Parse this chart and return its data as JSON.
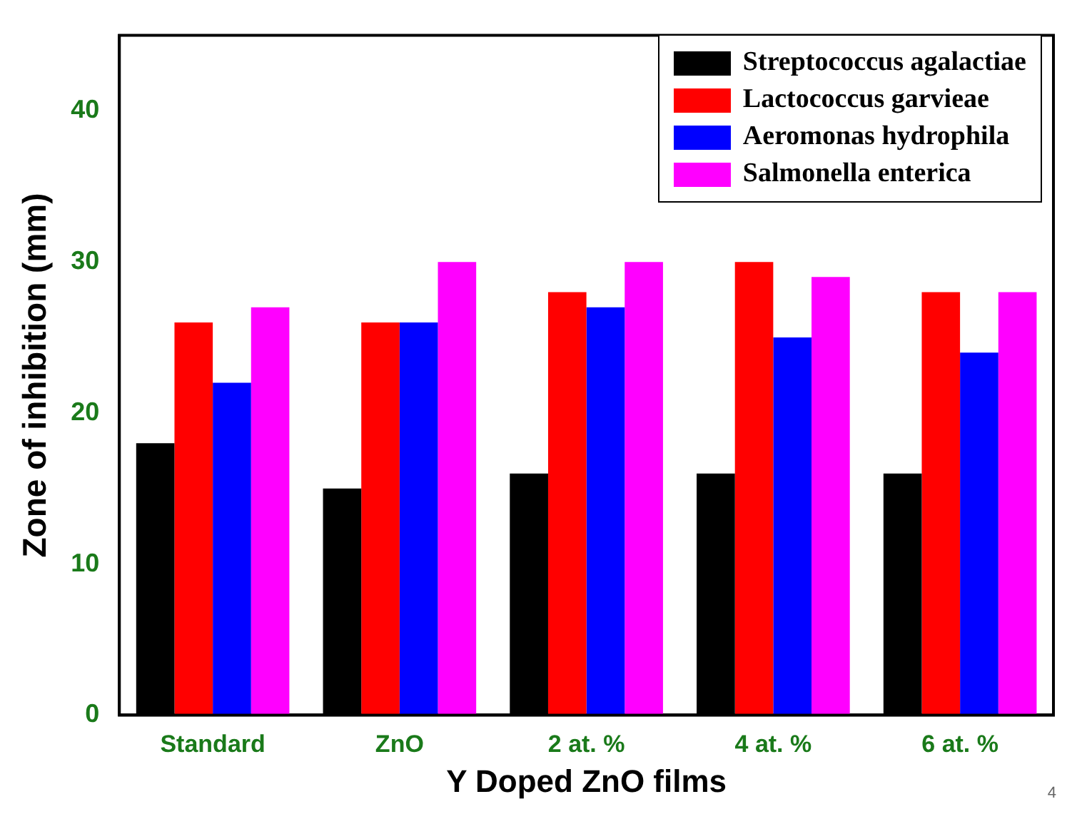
{
  "chart_data": {
    "type": "bar",
    "xlabel": "Y Doped ZnO films",
    "ylabel": "Zone of inhibition (mm)",
    "categories": [
      "Standard",
      "ZnO",
      "2 at. %",
      "4 at. %",
      "6 at. %"
    ],
    "series": [
      {
        "name": "Streptococcus agalactiae",
        "color": "#000000",
        "values": [
          18,
          15,
          16,
          16,
          16
        ]
      },
      {
        "name": "Lactococcus garvieae",
        "color": "#ff0000",
        "values": [
          26,
          26,
          28,
          30,
          28
        ]
      },
      {
        "name": "Aeromonas hydrophila",
        "color": "#0000ff",
        "values": [
          22,
          26,
          27,
          25,
          24
        ]
      },
      {
        "name": "Salmonella enterica",
        "color": "#ff00ff",
        "values": [
          27,
          30,
          30,
          29,
          28
        ]
      }
    ],
    "ylim": [
      0,
      45
    ],
    "yticks": [
      0,
      10,
      20,
      30,
      40
    ],
    "grid": false,
    "legend": "top right",
    "annotations": [
      "4"
    ]
  }
}
